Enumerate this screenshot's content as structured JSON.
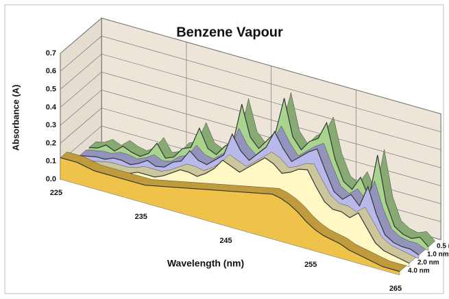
{
  "chart_data": {
    "type": "area3d",
    "title": "Benzene Vapour",
    "xlabel": "Wavelength (nm)",
    "ylabel": "Absorbance (A)",
    "x": [
      225,
      226,
      227,
      228,
      229,
      230,
      231,
      232,
      233,
      234,
      235,
      236,
      237,
      238,
      239,
      240,
      241,
      242,
      243,
      244,
      245,
      246,
      247,
      248,
      249,
      250,
      251,
      252,
      253,
      254,
      255,
      256,
      257,
      258,
      259,
      260,
      261,
      262,
      263,
      264,
      265
    ],
    "series": [
      {
        "name": "0.5 nm",
        "color": "#a9d48e",
        "values": [
          0.04,
          0.05,
          0.08,
          0.06,
          0.1,
          0.08,
          0.07,
          0.1,
          0.17,
          0.1,
          0.12,
          0.18,
          0.2,
          0.32,
          0.22,
          0.2,
          0.26,
          0.3,
          0.52,
          0.35,
          0.3,
          0.36,
          0.42,
          0.62,
          0.42,
          0.36,
          0.42,
          0.45,
          0.55,
          0.36,
          0.25,
          0.22,
          0.3,
          0.2,
          0.45,
          0.2,
          0.08,
          0.05,
          0.04,
          0.06,
          0.02
        ]
      },
      {
        "name": "1.0 nm",
        "color": "#b8b8ea",
        "values": [
          0.04,
          0.05,
          0.06,
          0.06,
          0.08,
          0.08,
          0.07,
          0.09,
          0.12,
          0.1,
          0.11,
          0.15,
          0.17,
          0.24,
          0.2,
          0.19,
          0.23,
          0.27,
          0.4,
          0.32,
          0.28,
          0.33,
          0.38,
          0.48,
          0.4,
          0.34,
          0.38,
          0.42,
          0.45,
          0.34,
          0.24,
          0.21,
          0.25,
          0.2,
          0.32,
          0.18,
          0.08,
          0.05,
          0.04,
          0.04,
          0.02
        ]
      },
      {
        "name": "2.0 nm",
        "color": "#fff7c4",
        "values": [
          0.04,
          0.05,
          0.05,
          0.06,
          0.07,
          0.07,
          0.07,
          0.08,
          0.1,
          0.1,
          0.1,
          0.12,
          0.15,
          0.18,
          0.18,
          0.17,
          0.2,
          0.24,
          0.3,
          0.28,
          0.26,
          0.3,
          0.34,
          0.38,
          0.36,
          0.32,
          0.34,
          0.37,
          0.38,
          0.3,
          0.23,
          0.2,
          0.2,
          0.18,
          0.22,
          0.15,
          0.08,
          0.05,
          0.04,
          0.03,
          0.02
        ]
      },
      {
        "name": "4.0 nm",
        "color": "#efc24a",
        "values": [
          0.12,
          0.12,
          0.12,
          0.11,
          0.1,
          0.1,
          0.1,
          0.1,
          0.1,
          0.1,
          0.1,
          0.11,
          0.12,
          0.13,
          0.14,
          0.15,
          0.16,
          0.17,
          0.18,
          0.19,
          0.2,
          0.21,
          0.22,
          0.23,
          0.24,
          0.25,
          0.24,
          0.22,
          0.19,
          0.15,
          0.12,
          0.1,
          0.09,
          0.08,
          0.06,
          0.05,
          0.04,
          0.03,
          0.02,
          0.02,
          0.02
        ]
      }
    ],
    "xlim": [
      225,
      265
    ],
    "xticks": [
      225,
      235,
      245,
      255,
      265
    ],
    "ylim": [
      0,
      0.7
    ],
    "yticks": [
      {
        "value": 0,
        "label": "0.0"
      },
      0.1,
      0.2,
      0.3,
      0.4,
      0.5,
      0.6,
      0.7
    ]
  }
}
